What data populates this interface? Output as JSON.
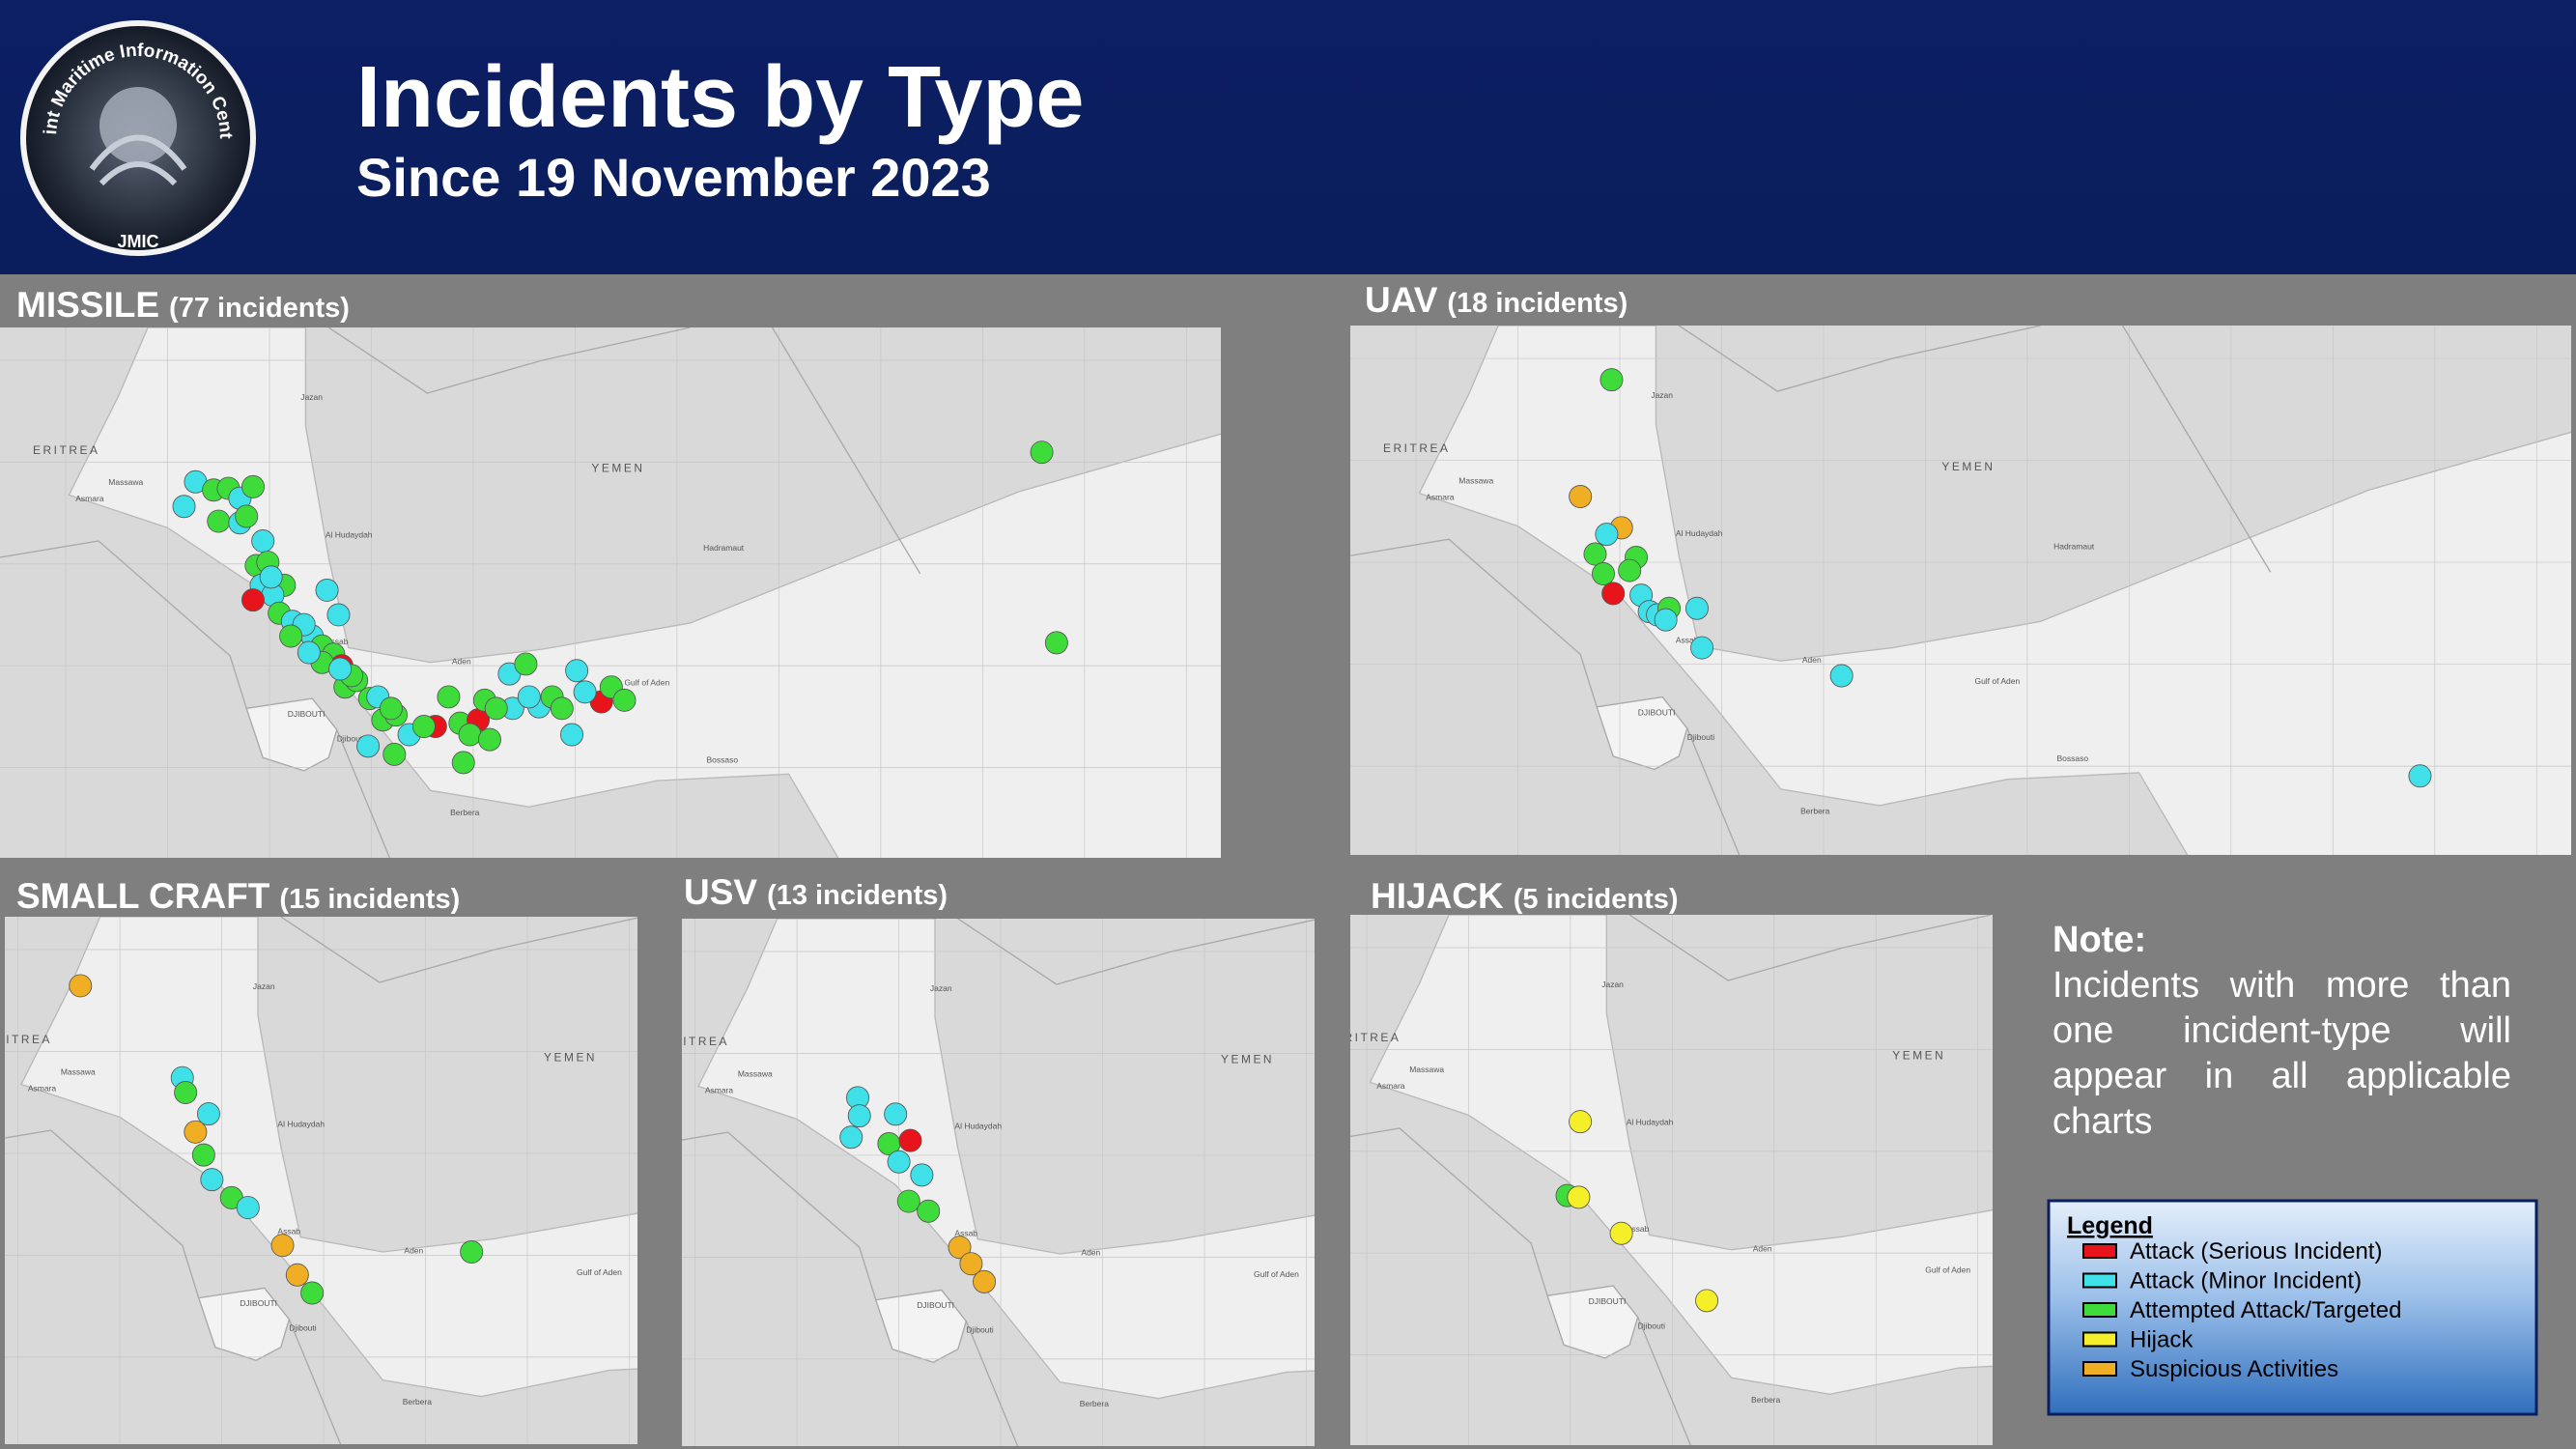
{
  "header": {
    "title": "Incidents by Type",
    "subtitle": "Since 19 November 2023",
    "logo": {
      "ring_text": "Joint Maritime Information Center",
      "label": "JMIC"
    }
  },
  "panels": [
    {
      "title": "MISSILE",
      "count": "(77 incidents)"
    },
    {
      "title": "UAV",
      "count": "(18 incidents)"
    },
    {
      "title": "SMALL CRAFT",
      "count": "(15 incidents)"
    },
    {
      "title": "USV",
      "count": "(13 incidents)"
    },
    {
      "title": "HIJACK",
      "count": "(5 incidents)"
    }
  ],
  "map_labels": [
    "ERITREA",
    "YEMEN",
    "Asmara",
    "Massawa",
    "Jazan",
    "Al Hudaydah",
    "Hadramaut",
    "Aden",
    "DJIBOUTI",
    "Djibouti",
    "Gulf of Aden",
    "Berbera",
    "Bossaso",
    "Assab"
  ],
  "note": {
    "title": "Note:",
    "text": "Incidents with more than one incident-type will appear in all applicable charts"
  },
  "legend": {
    "title": "Legend",
    "items": [
      {
        "label": "Attack (Serious Incident)",
        "color": "#e8141b"
      },
      {
        "label": "Attack (Minor Incident)",
        "color": "#3fe0e8"
      },
      {
        "label": "Attempted Attack/Targeted",
        "color": "#3ddc3a"
      },
      {
        "label": "Hijack",
        "color": "#f5ef2a"
      },
      {
        "label": "Suspicious Activities",
        "color": "#f0ae24"
      }
    ]
  }
}
